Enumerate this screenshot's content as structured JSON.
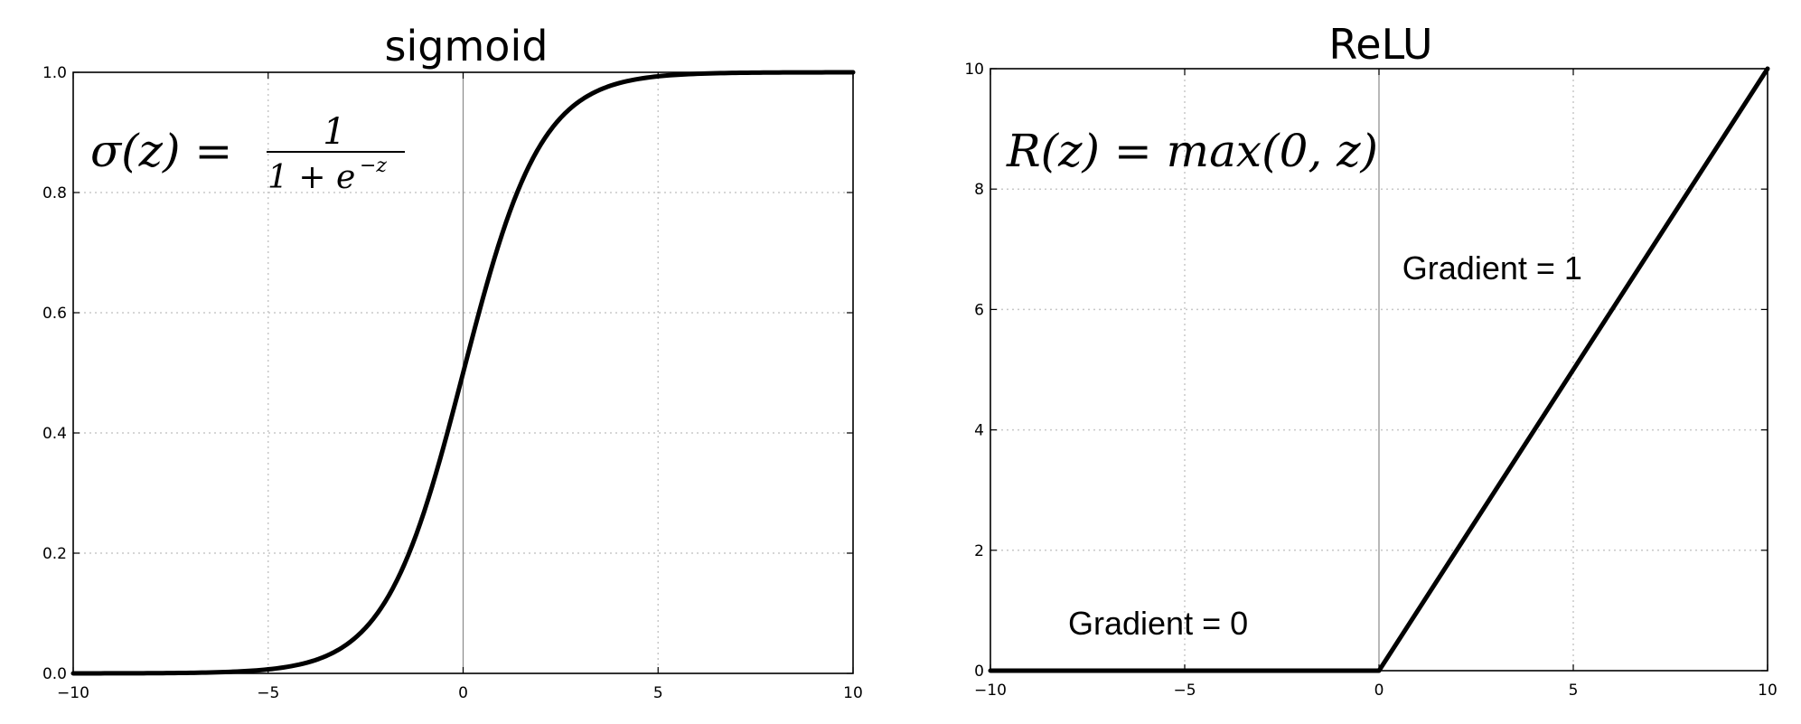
{
  "chart_data": [
    {
      "type": "line",
      "title": "sigmoid",
      "formula": {
        "lhs": "σ(z) =",
        "numerator": "1",
        "denominator": "1 + e",
        "exponent": "−z"
      },
      "xlim": [
        -10,
        10
      ],
      "ylim": [
        0,
        1
      ],
      "xticks": [
        "−10",
        "−5",
        "0",
        "5",
        "10"
      ],
      "yticks": [
        "0.0",
        "0.2",
        "0.4",
        "0.6",
        "0.8",
        "1.0"
      ],
      "grid": true,
      "series": [
        {
          "function": "1 / (1 + exp(-z))",
          "x": [
            -10,
            -8,
            -6,
            -5,
            -4,
            -3,
            -2,
            -1,
            0,
            1,
            2,
            3,
            4,
            5,
            6,
            8,
            10
          ],
          "y": [
            0.0,
            0.0003,
            0.0025,
            0.0067,
            0.018,
            0.047,
            0.119,
            0.269,
            0.5,
            0.731,
            0.881,
            0.953,
            0.982,
            0.993,
            0.9975,
            0.9997,
            1.0
          ]
        }
      ],
      "annotations": []
    },
    {
      "type": "line",
      "title": "ReLU",
      "formula": {
        "text": "R(z) = max(0,  z)"
      },
      "xlim": [
        -10,
        10
      ],
      "ylim": [
        0,
        10
      ],
      "xticks": [
        "−10",
        "−5",
        "0",
        "5",
        "10"
      ],
      "yticks": [
        "0",
        "2",
        "4",
        "6",
        "8",
        "10"
      ],
      "grid": true,
      "series": [
        {
          "function": "max(0, z)",
          "x": [
            -10,
            0,
            10
          ],
          "y": [
            0,
            0,
            10
          ]
        }
      ],
      "annotations": [
        {
          "text": "Gradient = 0",
          "x": -8,
          "y": 0.6
        },
        {
          "text": "Gradient = 1",
          "x": 0.6,
          "y": 6.5
        }
      ]
    }
  ]
}
